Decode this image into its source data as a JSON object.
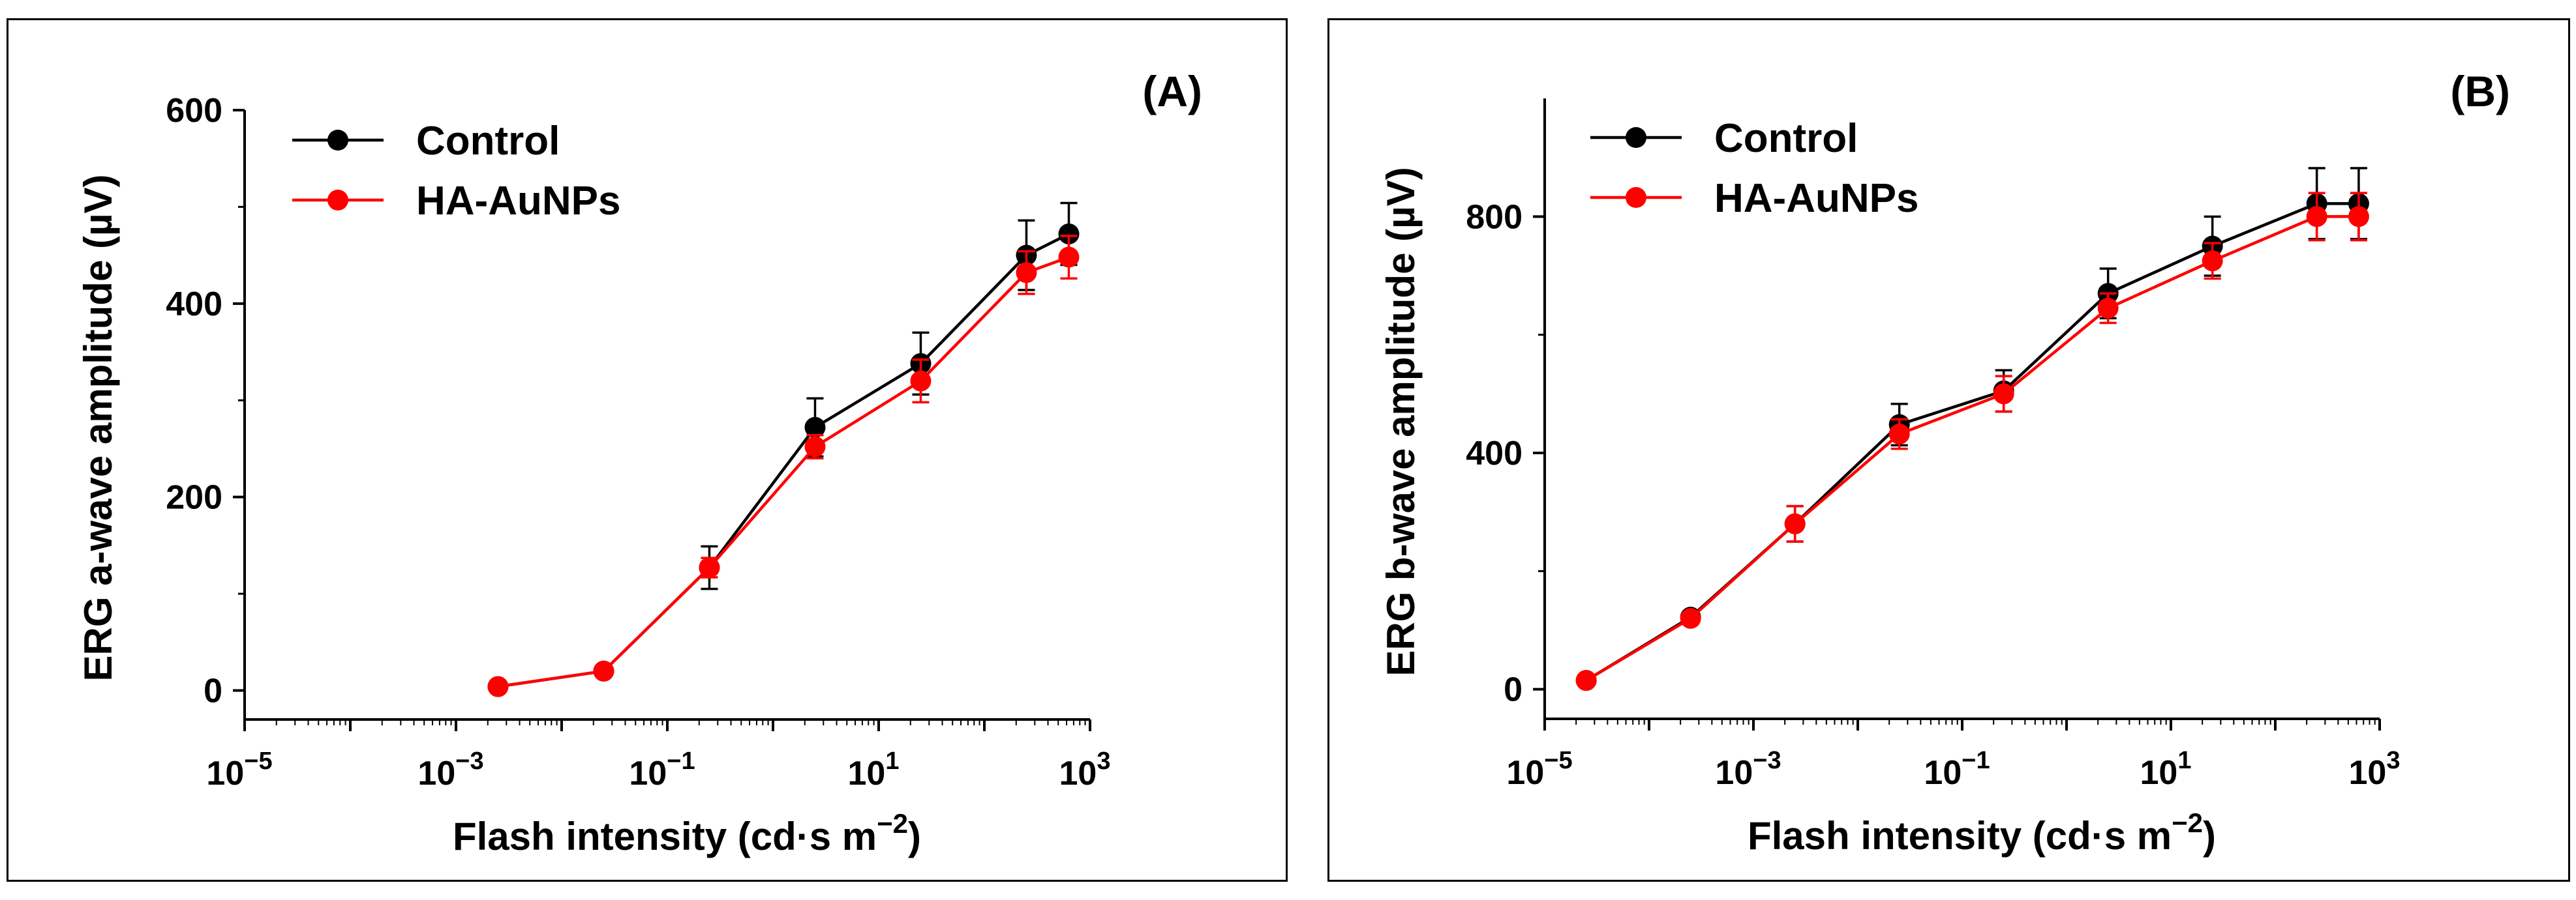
{
  "chart_data": [
    {
      "type": "line",
      "panel_label": "(A)",
      "xlabel": "Flash intensity (cd·s m",
      "xlabel_sup": "−2",
      "xlabel_end": ")",
      "ylabel": "ERG a-wave amplitude (µV)",
      "xscale": "log",
      "xlim_exp": [
        -5,
        3
      ],
      "ylim": [
        -30,
        600
      ],
      "x_ticks": [
        {
          "base": "10",
          "exp": "−5"
        },
        {
          "base": "10",
          "exp": "−3"
        },
        {
          "base": "10",
          "exp": "−1"
        },
        {
          "base": "10",
          "exp": "1"
        },
        {
          "base": "10",
          "exp": "3"
        }
      ],
      "x_tick_values": [
        -5,
        -3,
        -1,
        1,
        3
      ],
      "y_ticks": [
        "0",
        "200",
        "400",
        "600"
      ],
      "y_tick_values": [
        0,
        200,
        400,
        600
      ],
      "legend_position": "top-left",
      "x": [
        0.0025,
        0.025,
        0.25,
        2.5,
        25,
        250,
        630
      ],
      "series": [
        {
          "name": "Control",
          "color": "#000000",
          "values": [
            4,
            20,
            127,
            272,
            338,
            450,
            472
          ],
          "errors": [
            0,
            0,
            22,
            30,
            32,
            36,
            32
          ]
        },
        {
          "name": "HA-AuNPs",
          "color": "#ff0000",
          "values": [
            4,
            20,
            127,
            252,
            320,
            432,
            448
          ],
          "errors": [
            0,
            0,
            10,
            12,
            22,
            22,
            22
          ]
        }
      ]
    },
    {
      "type": "line",
      "panel_label": "(B)",
      "xlabel": "Flash intensity (cd·s m",
      "xlabel_sup": "−2",
      "xlabel_end": ")",
      "ylabel": "ERG b-wave amplitude (µV)",
      "xscale": "log",
      "xlim_exp": [
        -5,
        3
      ],
      "ylim": [
        -50,
        1000
      ],
      "x_ticks": [
        {
          "base": "10",
          "exp": "−5"
        },
        {
          "base": "10",
          "exp": "−3"
        },
        {
          "base": "10",
          "exp": "−1"
        },
        {
          "base": "10",
          "exp": "1"
        },
        {
          "base": "10",
          "exp": "3"
        }
      ],
      "x_tick_values": [
        -5,
        -3,
        -1,
        1,
        3
      ],
      "y_ticks": [
        "0",
        "400",
        "800"
      ],
      "y_tick_values": [
        0,
        400,
        800
      ],
      "legend_position": "top-left",
      "x": [
        2.5e-05,
        0.00025,
        0.0025,
        0.025,
        0.25,
        2.5,
        25,
        250,
        630
      ],
      "series": [
        {
          "name": "Control",
          "color": "#000000",
          "values": [
            15,
            122,
            280,
            448,
            505,
            670,
            750,
            822,
            822
          ],
          "errors": [
            0,
            0,
            30,
            35,
            35,
            42,
            50,
            60,
            60
          ]
        },
        {
          "name": "HA-AuNPs",
          "color": "#ff0000",
          "values": [
            15,
            120,
            280,
            432,
            500,
            645,
            725,
            800,
            800
          ],
          "errors": [
            0,
            0,
            30,
            25,
            30,
            25,
            30,
            40,
            40
          ]
        }
      ]
    }
  ]
}
